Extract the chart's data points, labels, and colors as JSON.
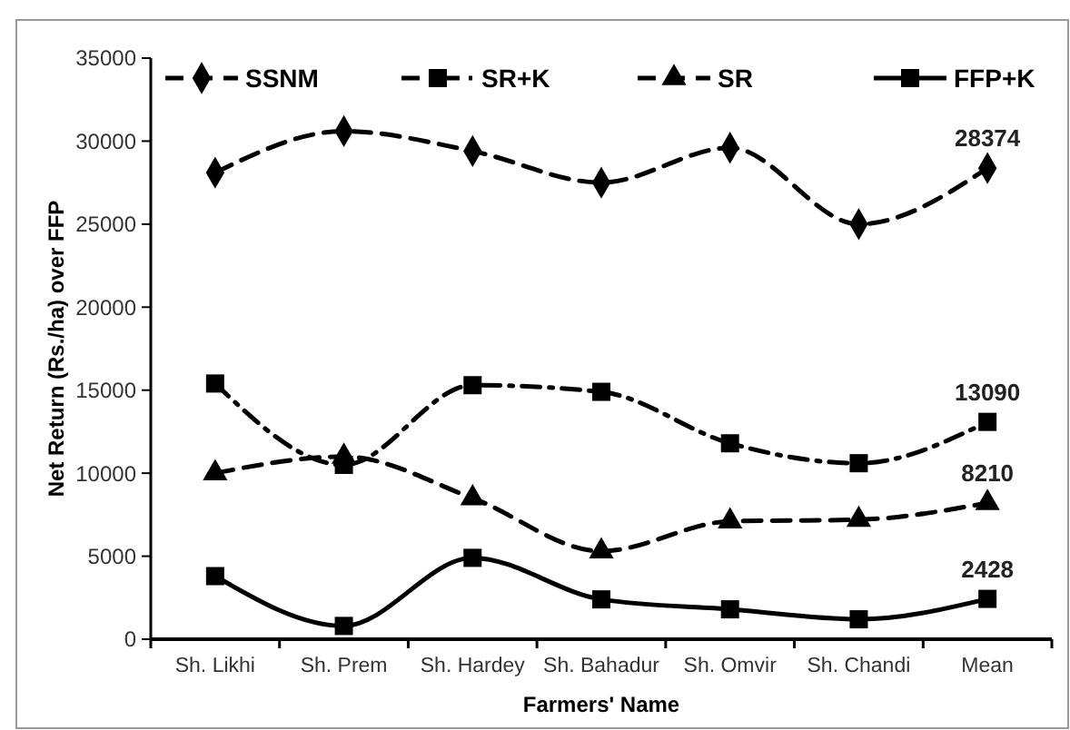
{
  "chart_data": {
    "type": "line",
    "xlabel": "Farmers' Name",
    "ylabel": "Net Return (Rs./ha) over FFP",
    "categories": [
      "Sh. Likhi",
      "Sh. Prem",
      "Sh. Hardey",
      "Sh. Bahadur",
      "Sh. Omvir",
      "Sh. Chandi",
      "Mean"
    ],
    "series": [
      {
        "name": "SSNM",
        "color": "#000000",
        "marker": "diamond",
        "line_style": "dashed",
        "values": [
          28100,
          30600,
          29400,
          27500,
          29600,
          25000,
          28374
        ],
        "value_labels": [
          null,
          null,
          null,
          null,
          null,
          null,
          "28374"
        ]
      },
      {
        "name": "SR+K",
        "color": "#000000",
        "marker": "square",
        "line_style": "dashdot",
        "values": [
          15400,
          10500,
          15300,
          14900,
          11800,
          10600,
          13090
        ],
        "value_labels": [
          null,
          null,
          null,
          null,
          null,
          null,
          "13090"
        ]
      },
      {
        "name": "SR",
        "color": "#000000",
        "marker": "triangle",
        "line_style": "dashed",
        "values": [
          10000,
          11000,
          8500,
          5300,
          7100,
          7200,
          8210
        ],
        "value_labels": [
          null,
          null,
          null,
          null,
          null,
          null,
          "8210"
        ]
      },
      {
        "name": "FFP+K",
        "color": "#000000",
        "marker": "square",
        "line_style": "solid",
        "values": [
          3800,
          800,
          4900,
          2400,
          1800,
          1200,
          2428
        ],
        "value_labels": [
          null,
          null,
          null,
          null,
          null,
          null,
          "2428"
        ]
      }
    ],
    "ylim": [
      0,
      35000
    ],
    "yticks": [
      0,
      5000,
      10000,
      15000,
      20000,
      25000,
      30000,
      35000
    ],
    "grid": false,
    "legend": "top"
  }
}
